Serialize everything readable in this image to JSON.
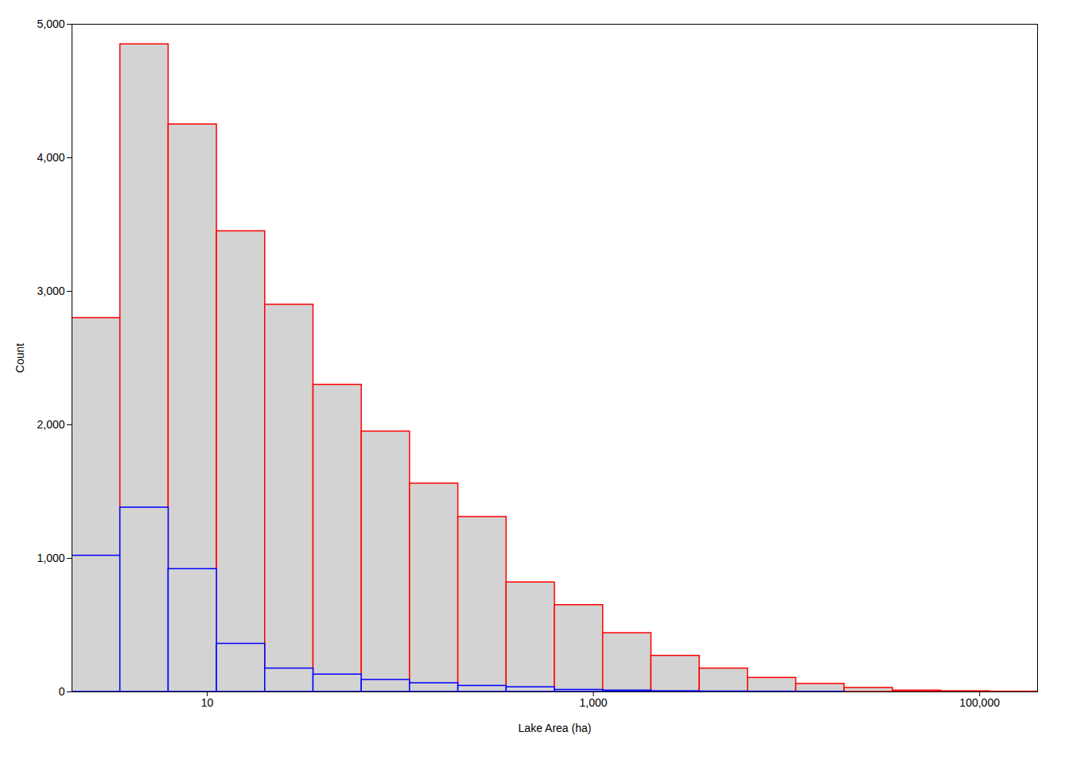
{
  "chart_data": {
    "type": "histogram",
    "xlabel": "Lake Area (ha)",
    "ylabel": "Count",
    "bins": [
      1.9952623149688795,
      3.548133892335755,
      6.309573444801933,
      11.220184543019634,
      19.952623149688797,
      35.48133892335755,
      63.09573444801933,
      112.20184543019634,
      199.52623149688796,
      354.8133892335755,
      630.9573444801933,
      1122.0184543019634,
      1995.2623149688795,
      3548.133892335755,
      6309.573444801933,
      11220.184543019634,
      19952.623149688796,
      35481.33892335755,
      63095.73444801933,
      112201.84543019634,
      199526.23149688795
    ],
    "color": "#d3d3d3",
    "series": [
      {
        "color": "#ff0000",
        "values": [
          2800,
          4850,
          4250,
          3450,
          2900,
          2300,
          1950,
          1560,
          1310,
          820,
          650,
          440,
          270,
          175,
          105,
          60,
          30,
          10,
          5,
          2
        ]
      },
      {
        "color": "#0000ff",
        "values": [
          1020,
          1380,
          920,
          360,
          175,
          130,
          90,
          65,
          45,
          35,
          15,
          10,
          5,
          3,
          2,
          1,
          0,
          0,
          0,
          0
        ]
      }
    ],
    "xlim": [
      1.9952623149688795,
      199526.23149688795
    ],
    "ylim": [
      0,
      5000
    ],
    "xticks": [
      10,
      {
        "value": 1000,
        "label": "1,000"
      },
      {
        "value": 100000,
        "label": "100,000"
      }
    ],
    "yticks": [
      0,
      {
        "value": 1000,
        "label": "1,000"
      },
      {
        "value": 2000,
        "label": "2,000"
      },
      {
        "value": 3000,
        "label": "3,000"
      },
      {
        "value": 4000,
        "label": "4,000"
      },
      {
        "value": 5000,
        "label": "5,000"
      }
    ],
    "log": "x",
    "grid": false
  }
}
